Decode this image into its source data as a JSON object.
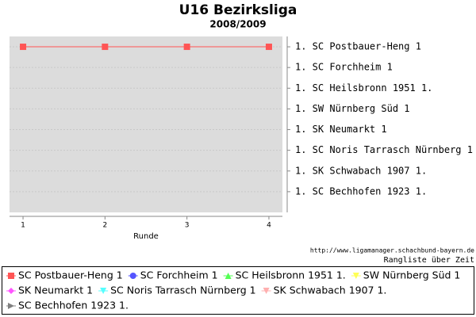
{
  "chart_data": {
    "type": "line",
    "title": "U16 Bezirksliga",
    "subtitle": "2008/2009",
    "x_label": "Runde",
    "source": "http://www.ligamanager.schachbund-bayern.de",
    "caption": "Rangliste über Zeit",
    "x": [
      1,
      2,
      3,
      4
    ],
    "xlim": [
      0.835,
      4.165
    ],
    "xticks": [
      1,
      2,
      3,
      4
    ],
    "ylim": [
      9,
      0.5
    ],
    "yticks": [
      {
        "value": 1,
        "label": "1. SC Postbauer-Heng 1"
      },
      {
        "value": 2,
        "label": "1. SC Forchheim 1"
      },
      {
        "value": 3,
        "label": "1. SC Heilsbronn 1951 1."
      },
      {
        "value": 4,
        "label": "1. SW Nürnberg Süd 1"
      },
      {
        "value": 5,
        "label": "1. SK Neumarkt 1"
      },
      {
        "value": 6,
        "label": "1. SC Noris Tarrasch Nürnberg 1"
      },
      {
        "value": 7,
        "label": "1. SK Schwabach 1907 1."
      },
      {
        "value": 8,
        "label": "1. SC Bechhofen 1923 1."
      }
    ],
    "grid": true,
    "series": [
      {
        "name": "SC Postbauer-Heng 1",
        "color": "#ff5555",
        "marker": "square",
        "values": [
          1,
          1,
          1,
          1
        ]
      },
      {
        "name": "SC Forchheim 1",
        "color": "#5555ff",
        "marker": "circle",
        "values": [
          null,
          null,
          null,
          null
        ]
      },
      {
        "name": "SC Heilsbronn 1951 1.",
        "color": "#55ff55",
        "marker": "triangle-up",
        "values": [
          null,
          null,
          null,
          null
        ]
      },
      {
        "name": "SW Nürnberg Süd 1",
        "color": "#ffff55",
        "marker": "triangle-down",
        "values": [
          null,
          null,
          null,
          null
        ]
      },
      {
        "name": "SK Neumarkt 1",
        "color": "#ff55ff",
        "marker": "diamond",
        "values": [
          null,
          null,
          null,
          null
        ]
      },
      {
        "name": "SC Noris Tarrasch Nürnberg 1",
        "color": "#55ffff",
        "marker": "triangle-down",
        "values": [
          null,
          null,
          null,
          null
        ]
      },
      {
        "name": "SK Schwabach 1907 1.",
        "color": "#ffafaf",
        "marker": "triangle-down",
        "values": [
          null,
          null,
          null,
          null
        ]
      },
      {
        "name": "SC Bechhofen 1923 1.",
        "color": "#808080",
        "marker": "triangle-right",
        "values": [
          null,
          null,
          null,
          null
        ]
      }
    ]
  }
}
